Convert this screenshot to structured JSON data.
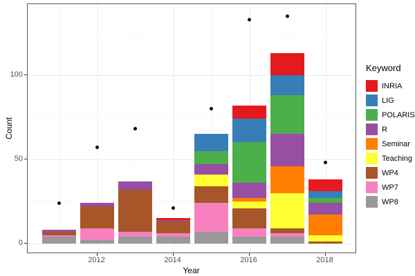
{
  "chart_data": {
    "type": "bar",
    "stacked": true,
    "title": "",
    "xlabel": "Year",
    "ylabel": "Count",
    "legend_title": "Keyword",
    "legend_position": "right",
    "grid": true,
    "categories": [
      2011,
      2012,
      2013,
      2014,
      2015,
      2016,
      2017,
      2018
    ],
    "x_tick_years": [
      2012,
      2014,
      2016,
      2018
    ],
    "x_tick_labels": [
      "2012",
      "2014",
      "2016",
      "2018"
    ],
    "minor_x_years": [
      2011,
      2013,
      2015,
      2017
    ],
    "y_tick_values": [
      0,
      50,
      100
    ],
    "y_tick_labels": [
      "0",
      "50",
      "100"
    ],
    "y_minor_values": [
      25,
      75,
      125
    ],
    "ylim": [
      -6,
      142.3
    ],
    "series": [
      {
        "name": "INRIA",
        "color": "#E41A1C",
        "values": [
          0,
          0,
          0,
          1,
          0,
          8,
          13,
          7
        ]
      },
      {
        "name": "LIG",
        "color": "#377EB8",
        "values": [
          0,
          0,
          0,
          0,
          10,
          14,
          12,
          4
        ]
      },
      {
        "name": "POLARIS",
        "color": "#4DAF4A",
        "values": [
          0,
          0,
          0,
          0,
          8,
          24,
          23,
          3
        ]
      },
      {
        "name": "R",
        "color": "#984EA3",
        "values": [
          1,
          2,
          5,
          1,
          6,
          9,
          19,
          7
        ]
      },
      {
        "name": "Seminar",
        "color": "#FF7F00",
        "values": [
          0,
          0,
          0,
          0,
          0,
          2,
          16,
          12
        ]
      },
      {
        "name": "Teaching",
        "color": "#FFFF33",
        "values": [
          0,
          0,
          0,
          0,
          7,
          4,
          21,
          4
        ]
      },
      {
        "name": "WP4",
        "color": "#A65628",
        "values": [
          2,
          13,
          25,
          7,
          10,
          12,
          3,
          1
        ]
      },
      {
        "name": "WP7",
        "color": "#F781BF",
        "values": [
          1,
          7,
          3,
          2,
          17,
          5,
          2,
          0
        ]
      },
      {
        "name": "WP8",
        "color": "#999999",
        "values": [
          4,
          2,
          4,
          4,
          7,
          4,
          4,
          0
        ]
      }
    ],
    "bar_totals": [
      8,
      24,
      37,
      15,
      65,
      82,
      113,
      38
    ],
    "points": {
      "marker": "black-dot",
      "values": [
        24,
        57,
        68,
        21,
        80,
        133,
        135,
        48
      ]
    },
    "colors": {
      "grid_major": "#EBEBEB",
      "grid_minor": "#F6F6F6",
      "panel_border": "#595959",
      "tick": "#333333",
      "tick_label": "#4D4D4D",
      "point": "#000000"
    }
  }
}
